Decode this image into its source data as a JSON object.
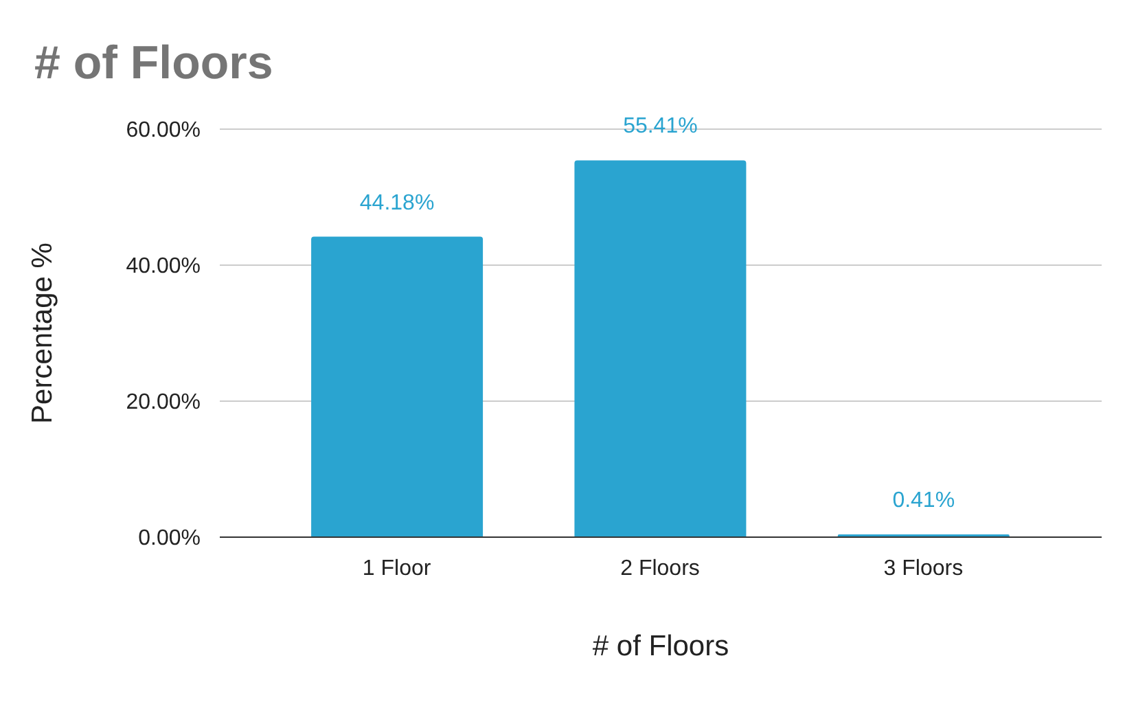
{
  "chart_data": {
    "type": "bar",
    "title": "# of Floors",
    "xlabel": "# of Floors",
    "ylabel": "Percentage %",
    "categories": [
      "1 Floor",
      "2 Floors",
      "3 Floors"
    ],
    "values": [
      44.18,
      55.41,
      0.41
    ],
    "color": "#2aa4d0",
    "value_labels": [
      "44.18%",
      "55.41%",
      "0.41%"
    ],
    "ylim": [
      0,
      60
    ],
    "yticks": [
      {
        "value": 0,
        "label": "0.00%"
      },
      {
        "value": 20,
        "label": "20.00%"
      },
      {
        "value": 40,
        "label": "40.00%"
      },
      {
        "value": 60,
        "label": "60.00%"
      }
    ],
    "grid": "y"
  }
}
